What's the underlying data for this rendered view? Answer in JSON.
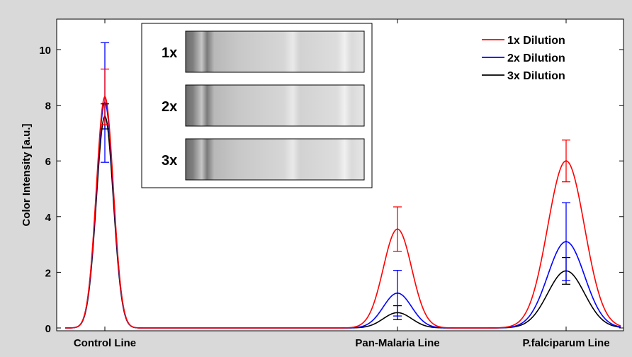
{
  "chart_data": {
    "type": "line",
    "ylabel": "Color Intensity [a.u.]",
    "xlabel": "",
    "ylim": [
      0,
      10.8
    ],
    "y_ticks": [
      "0",
      "2",
      "4",
      "6",
      "8",
      "10"
    ],
    "categories": [
      "Control Line",
      "Pan-Malaria Line",
      "P.falciparum Line"
    ],
    "grid": false,
    "legend_position": "top-right",
    "series": [
      {
        "name": "1x Dilution",
        "color": "#ff0000",
        "peaks": [
          8.3,
          3.55,
          6.0
        ],
        "error": [
          1.0,
          0.8,
          0.75
        ]
      },
      {
        "name": "2x Dilution",
        "color": "#0000ff",
        "peaks": [
          8.1,
          1.25,
          3.1
        ],
        "error": [
          2.15,
          0.82,
          1.4
        ]
      },
      {
        "name": "3x Dilution",
        "color": "#000000",
        "peaks": [
          7.6,
          0.55,
          2.05
        ],
        "error": [
          0.45,
          0.25,
          0.48
        ]
      }
    ],
    "inset": {
      "labels": [
        "1x",
        "2x",
        "3x"
      ]
    }
  }
}
